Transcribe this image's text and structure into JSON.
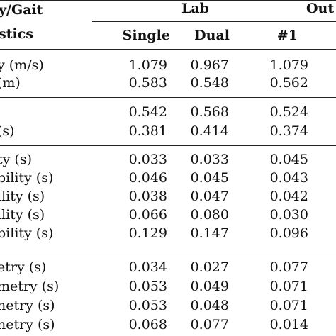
{
  "header": {
    "row_label_line1": "y/Gait",
    "row_label_line2": "stics",
    "group_lab": "Lab",
    "group_out": "Out",
    "col_single": "Single",
    "col_dual": "Dual",
    "col_out_1": "#1"
  },
  "sections": [
    {
      "rows": [
        {
          "label": "y (m/s)",
          "single": "1.079",
          "dual": "0.967",
          "out1": "1.079"
        },
        {
          "label": "(m)",
          "single": "0.583",
          "dual": "0.548",
          "out1": "0.562"
        }
      ]
    },
    {
      "rows": [
        {
          "label": "",
          "single": "0.542",
          "dual": "0.568",
          "out1": "0.524"
        },
        {
          "label": "(s)",
          "single": "0.381",
          "dual": "0.414",
          "out1": "0.374"
        }
      ]
    },
    {
      "rows": [
        {
          "label": "ty (s)",
          "single": "0.033",
          "dual": "0.033",
          "out1": "0.045"
        },
        {
          "label": "bility (s)",
          "single": "0.046",
          "dual": "0.045",
          "out1": "0.043"
        },
        {
          "label": "ility (s)",
          "single": "0.038",
          "dual": "0.047",
          "out1": "0.042"
        },
        {
          "label": "ility (s)",
          "single": "0.066",
          "dual": "0.080",
          "out1": "0.030"
        },
        {
          "label": "bility (s)",
          "single": "0.129",
          "dual": "0.147",
          "out1": "0.096"
        }
      ]
    },
    {
      "rows": [
        {
          "label": "etry (s)",
          "single": "0.034",
          "dual": "0.027",
          "out1": "0.077"
        },
        {
          "label": "metry (s)",
          "single": "0.053",
          "dual": "0.049",
          "out1": "0.071"
        },
        {
          "label": "netry (s)",
          "single": "0.053",
          "dual": "0.048",
          "out1": "0.071"
        },
        {
          "label": "netry (s)",
          "single": "0.068",
          "dual": "0.077",
          "out1": "0.014"
        }
      ]
    }
  ]
}
